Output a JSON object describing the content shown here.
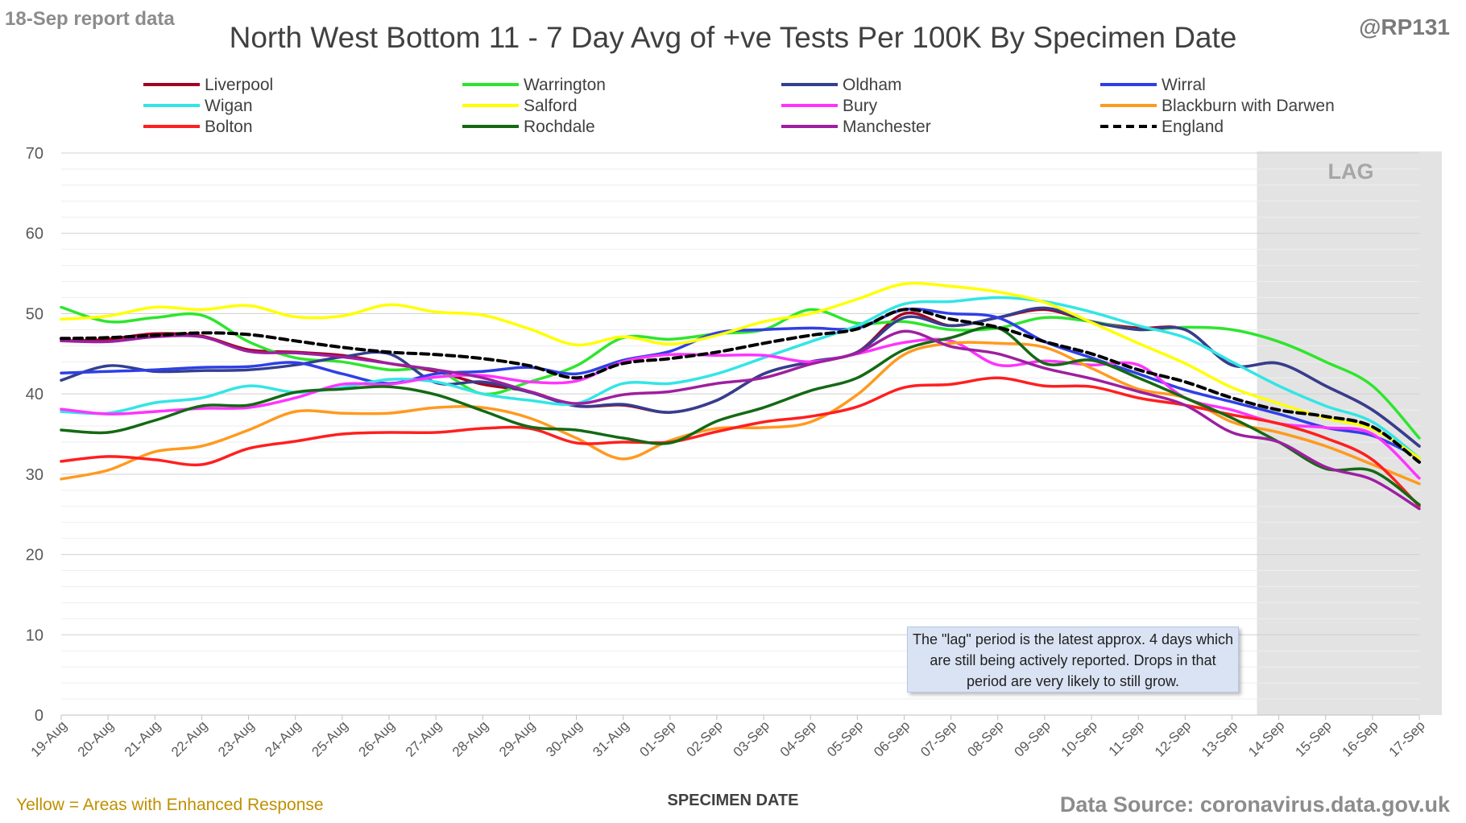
{
  "header": {
    "report_date": "18-Sep report data",
    "title": "North West Bottom 11 - 7 Day Avg of +ve Tests Per 100K By Specimen Date",
    "handle": "@RP131"
  },
  "footer": {
    "footnote": "Yellow = Areas with Enhanced Response",
    "source": "Data Source: coronavirus.data.gov.uk"
  },
  "annotations": {
    "lag_label": "LAG",
    "lag_note": "The \"lag\" period is the latest approx. 4 days which are still being actively reported. Drops in that period are very likely to still grow."
  },
  "chart_data": {
    "type": "line",
    "title": "North West Bottom 11 - 7 Day Avg of +ve Tests Per 100K By Specimen Date",
    "xlabel": "SPECIMEN DATE",
    "ylabel": "",
    "ylim": [
      0,
      70
    ],
    "yticks": [
      0,
      10,
      20,
      30,
      40,
      50,
      60,
      70
    ],
    "grid": true,
    "legend_position": "top",
    "lag_region": [
      "14-Sep",
      "17-Sep"
    ],
    "categories": [
      "19-Aug",
      "20-Aug",
      "21-Aug",
      "22-Aug",
      "23-Aug",
      "24-Aug",
      "25-Aug",
      "26-Aug",
      "27-Aug",
      "28-Aug",
      "29-Aug",
      "30-Aug",
      "31-Aug",
      "01-Sep",
      "02-Sep",
      "03-Sep",
      "04-Sep",
      "05-Sep",
      "06-Sep",
      "07-Sep",
      "08-Sep",
      "09-Sep",
      "10-Sep",
      "11-Sep",
      "12-Sep",
      "13-Sep",
      "14-Sep",
      "15-Sep",
      "16-Sep",
      "17-Sep"
    ],
    "series": [
      {
        "name": "Liverpool",
        "color": "#a50021",
        "dashed": false,
        "values": [
          46.6,
          46.8,
          47.5,
          47.2,
          45.5,
          45.2,
          44.8,
          43.8,
          42.8,
          41.2,
          40.3,
          38.5,
          38.6,
          37.7,
          39.2,
          42.5,
          44.0,
          45.2,
          50.0,
          48.5,
          49.5,
          50.5,
          49.0,
          48.2,
          48.0,
          43.6,
          43.8,
          41.0,
          38.0,
          33.5
        ]
      },
      {
        "name": "Warrington",
        "color": "#2ee52e",
        "dashed": false,
        "values": [
          50.8,
          49.0,
          49.5,
          49.8,
          46.5,
          44.5,
          44.0,
          43.0,
          43.0,
          40.0,
          41.5,
          43.5,
          47.0,
          46.8,
          47.5,
          48.0,
          50.5,
          48.8,
          49.0,
          48.0,
          48.2,
          49.5,
          49.0,
          48.0,
          48.3,
          48.0,
          46.5,
          44.0,
          41.0,
          34.5
        ]
      },
      {
        "name": "Oldham",
        "color": "#333f8f",
        "dashed": false,
        "values": [
          41.7,
          43.5,
          42.8,
          42.9,
          43.0,
          43.6,
          44.6,
          45.0,
          41.4,
          41.5,
          40.2,
          38.5,
          38.7,
          37.7,
          39.2,
          42.5,
          44.0,
          45.2,
          49.5,
          48.5,
          49.5,
          50.7,
          49.0,
          48.0,
          48.0,
          43.6,
          43.8,
          41.0,
          38.0,
          33.5
        ]
      },
      {
        "name": "Wirral",
        "color": "#2f3fe6",
        "dashed": false,
        "values": [
          42.6,
          42.8,
          43.0,
          43.3,
          43.4,
          43.9,
          42.5,
          41.3,
          42.5,
          42.8,
          43.3,
          42.5,
          44.2,
          45.3,
          47.6,
          48.0,
          48.2,
          48.2,
          50.5,
          50.0,
          49.5,
          46.5,
          44.5,
          42.5,
          40.5,
          39.0,
          37.5,
          35.8,
          34.8,
          32.0
        ]
      },
      {
        "name": "Wigan",
        "color": "#33e5e5",
        "dashed": false,
        "values": [
          37.8,
          37.6,
          38.9,
          39.5,
          41.0,
          40.2,
          40.8,
          41.8,
          41.5,
          40.0,
          39.2,
          38.8,
          41.3,
          41.3,
          42.5,
          44.5,
          46.5,
          48.5,
          51.2,
          51.5,
          52.0,
          51.5,
          50.2,
          48.5,
          47.0,
          44.0,
          41.0,
          38.5,
          36.5,
          32.0
        ]
      },
      {
        "name": "Salford",
        "color": "#ffff00",
        "dashed": false,
        "values": [
          49.3,
          49.7,
          50.8,
          50.5,
          51.0,
          49.6,
          49.7,
          51.1,
          50.2,
          49.8,
          48.1,
          46.1,
          47.1,
          46.2,
          47.3,
          49.0,
          50.0,
          51.8,
          53.7,
          53.4,
          52.7,
          51.4,
          48.9,
          46.3,
          43.8,
          40.8,
          38.8,
          37.0,
          35.6,
          32.0
        ]
      },
      {
        "name": "Bury",
        "color": "#ff33ff",
        "dashed": false,
        "values": [
          38.1,
          37.5,
          37.8,
          38.2,
          38.3,
          39.5,
          41.2,
          41.2,
          42.1,
          42.3,
          41.5,
          41.6,
          44.0,
          44.9,
          44.8,
          44.8,
          44.0,
          45.0,
          46.4,
          46.6,
          43.6,
          44.1,
          43.6,
          43.6,
          39.5,
          38.0,
          36.3,
          35.8,
          35.0,
          29.5
        ]
      },
      {
        "name": "Blackburn with Darwen",
        "color": "#ff9a1f",
        "dashed": false,
        "values": [
          29.4,
          30.5,
          32.8,
          33.5,
          35.5,
          37.8,
          37.6,
          37.6,
          38.3,
          38.3,
          37.0,
          34.5,
          31.9,
          34.2,
          35.7,
          35.8,
          36.5,
          39.9,
          44.9,
          46.3,
          46.3,
          45.8,
          43.2,
          40.6,
          39.5,
          36.5,
          35.2,
          33.5,
          31.2,
          28.8
        ]
      },
      {
        "name": "Bolton",
        "color": "#ff1f1f",
        "dashed": false,
        "values": [
          31.6,
          32.2,
          31.8,
          31.2,
          33.2,
          34.1,
          35.0,
          35.2,
          35.2,
          35.7,
          35.7,
          33.9,
          34.0,
          34.0,
          35.3,
          36.5,
          37.2,
          38.4,
          40.8,
          41.2,
          42.0,
          41.0,
          40.9,
          39.5,
          38.6,
          37.4,
          36.3,
          34.5,
          31.8,
          26.0
        ]
      },
      {
        "name": "Rochdale",
        "color": "#146914",
        "dashed": false,
        "values": [
          35.5,
          35.2,
          36.7,
          38.5,
          38.6,
          40.2,
          40.6,
          40.9,
          39.9,
          37.9,
          35.9,
          35.5,
          34.5,
          33.9,
          36.6,
          38.3,
          40.4,
          42.0,
          45.5,
          47.0,
          48.2,
          43.8,
          44.2,
          42.0,
          39.5,
          37.0,
          34.0,
          30.7,
          30.4,
          26.2
        ]
      },
      {
        "name": "Manchester",
        "color": "#9e1fa0",
        "dashed": false,
        "values": [
          46.6,
          46.5,
          47.1,
          47.1,
          45.3,
          45.1,
          44.6,
          43.8,
          43.0,
          42.0,
          40.3,
          38.8,
          39.9,
          40.3,
          41.3,
          42.0,
          43.7,
          45.1,
          47.8,
          45.9,
          45.0,
          43.2,
          41.9,
          40.3,
          38.6,
          35.2,
          34.0,
          30.9,
          29.3,
          25.7
        ]
      },
      {
        "name": "England",
        "color": "#000000",
        "dashed": true,
        "values": [
          46.9,
          47.0,
          47.3,
          47.6,
          47.4,
          46.6,
          45.8,
          45.2,
          44.9,
          44.4,
          43.5,
          42.0,
          43.8,
          44.4,
          45.2,
          46.3,
          47.3,
          48.1,
          50.5,
          49.3,
          48.3,
          46.5,
          45.0,
          43.0,
          41.5,
          39.5,
          38.0,
          37.2,
          35.9,
          31.5
        ]
      }
    ]
  }
}
